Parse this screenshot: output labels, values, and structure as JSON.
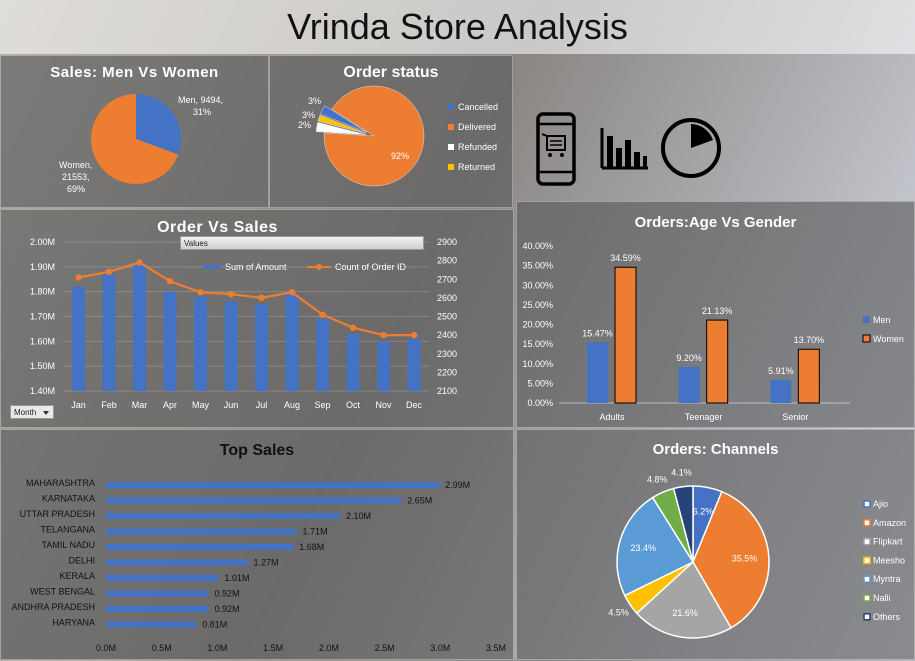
{
  "title": "Vrinda Store Analysis",
  "colors": {
    "blue": "#4472C4",
    "orange": "#ED7D31",
    "white": "#FFFFFF",
    "yellow": "#FFC000",
    "gray": "#A5A5A5",
    "green": "#70AD47",
    "navy": "#264478"
  },
  "icons": [
    "mobile-cart-icon",
    "bar-chart-icon",
    "pie-gauge-icon"
  ],
  "order_vs_sales_controls": {
    "values_button": "Values",
    "month_filter": "Month"
  },
  "chart_data": [
    {
      "id": "men_women",
      "type": "pie",
      "title": "Sales: Men Vs Women",
      "slices": [
        {
          "label": "Men",
          "value": 9494,
          "pct_label": "31%"
        },
        {
          "label": "Women",
          "value": 21553,
          "pct_label": "69%"
        }
      ],
      "data_labels": [
        "Men, 9494,",
        "31%",
        "Women,",
        "21553,",
        "69%"
      ]
    },
    {
      "id": "order_status",
      "type": "pie",
      "title": "Order status",
      "slices": [
        {
          "label": "Cancelled",
          "value": 3,
          "pct_label": "3%"
        },
        {
          "label": "Delivered",
          "value": 92,
          "pct_label": "92%"
        },
        {
          "label": "Refunded",
          "value": 3,
          "pct_label": "3%"
        },
        {
          "label": "Returned",
          "value": 2,
          "pct_label": "2%"
        }
      ],
      "legend": [
        "Cancelled",
        "Delivered",
        "Refunded",
        "Returned"
      ],
      "legend_position": "right"
    },
    {
      "id": "order_vs_sales",
      "type": "bar",
      "title": "Order Vs Sales",
      "categories": [
        "Jan",
        "Feb",
        "Mar",
        "Apr",
        "May",
        "Jun",
        "Jul",
        "Aug",
        "Sep",
        "Oct",
        "Nov",
        "Dec"
      ],
      "series": [
        {
          "name": "Sum of Amount",
          "type": "bar",
          "axis": "left",
          "values": [
            1.82,
            1.87,
            1.92,
            1.8,
            1.78,
            1.76,
            1.75,
            1.79,
            1.69,
            1.63,
            1.6,
            1.61
          ]
        },
        {
          "name": "Count of Order ID",
          "type": "line",
          "axis": "right",
          "values": [
            2710,
            2740,
            2790,
            2690,
            2630,
            2620,
            2600,
            2630,
            2510,
            2440,
            2400,
            2400
          ]
        }
      ],
      "y_left": {
        "ylim": [
          1.4,
          2.0
        ],
        "ticks": [
          "1.40M",
          "1.50M",
          "1.60M",
          "1.70M",
          "1.80M",
          "1.90M",
          "2.00M"
        ]
      },
      "y_right": {
        "ylim": [
          2100,
          2900
        ],
        "ticks": [
          "2100",
          "2200",
          "2300",
          "2400",
          "2500",
          "2600",
          "2700",
          "2800",
          "2900"
        ]
      },
      "legend_position": "top"
    },
    {
      "id": "age_gender",
      "type": "bar",
      "title": "Orders:Age Vs Gender",
      "categories": [
        "Adults",
        "Teenager",
        "Senior"
      ],
      "series": [
        {
          "name": "Men",
          "values": [
            15.47,
            9.2,
            5.91
          ],
          "labels": [
            "15.47%",
            "9.20%",
            "5.91%"
          ]
        },
        {
          "name": "Women",
          "values": [
            34.59,
            21.13,
            13.7
          ],
          "labels": [
            "34.59%",
            "21.13%",
            "13.70%"
          ]
        }
      ],
      "ylim": [
        0,
        40
      ],
      "yticks": [
        "0.00%",
        "5.00%",
        "10.00%",
        "15.00%",
        "20.00%",
        "25.00%",
        "30.00%",
        "35.00%",
        "40.00%"
      ],
      "legend_position": "right"
    },
    {
      "id": "top_sales",
      "type": "bar",
      "orientation": "horizontal",
      "title": "Top Sales",
      "categories": [
        "MAHARASHTRA",
        "KARNATAKA",
        "UTTAR PRADESH",
        "TELANGANA",
        "TAMIL NADU",
        "DELHI",
        "KERALA",
        "WEST BENGAL",
        "ANDHRA PRADESH",
        "HARYANA"
      ],
      "values": [
        2.99,
        2.65,
        2.1,
        1.71,
        1.68,
        1.27,
        1.01,
        0.92,
        0.92,
        0.81
      ],
      "labels": [
        "2.99M",
        "2.65M",
        "2.10M",
        "1.71M",
        "1.68M",
        "1.27M",
        "1.01M",
        "0.92M",
        "0.92M",
        "0.81M"
      ],
      "xlim": [
        0,
        3.5
      ],
      "xticks": [
        "0.0M",
        "0.5M",
        "1.0M",
        "1.5M",
        "2.0M",
        "2.5M",
        "3.0M",
        "3.5M"
      ]
    },
    {
      "id": "channels",
      "type": "pie",
      "title": "Orders: Channels",
      "slices": [
        {
          "label": "Ajio",
          "value": 6.2,
          "pct_label": "6.2%"
        },
        {
          "label": "Amazon",
          "value": 35.5,
          "pct_label": "35.5%"
        },
        {
          "label": "Flipkart",
          "value": 21.6,
          "pct_label": "21.6%"
        },
        {
          "label": "Meesho",
          "value": 4.5,
          "pct_label": "4.5%"
        },
        {
          "label": "Myntra",
          "value": 23.4,
          "pct_label": "23.4%"
        },
        {
          "label": "Nalli",
          "value": 4.8,
          "pct_label": "4.8%"
        },
        {
          "label": "Others",
          "value": 4.1,
          "pct_label": "4.1%"
        }
      ],
      "legend": [
        "Ajio",
        "Amazon",
        "Flipkart",
        "Meesho",
        "Myntra",
        "Nalli",
        "Others"
      ],
      "legend_position": "right"
    }
  ]
}
